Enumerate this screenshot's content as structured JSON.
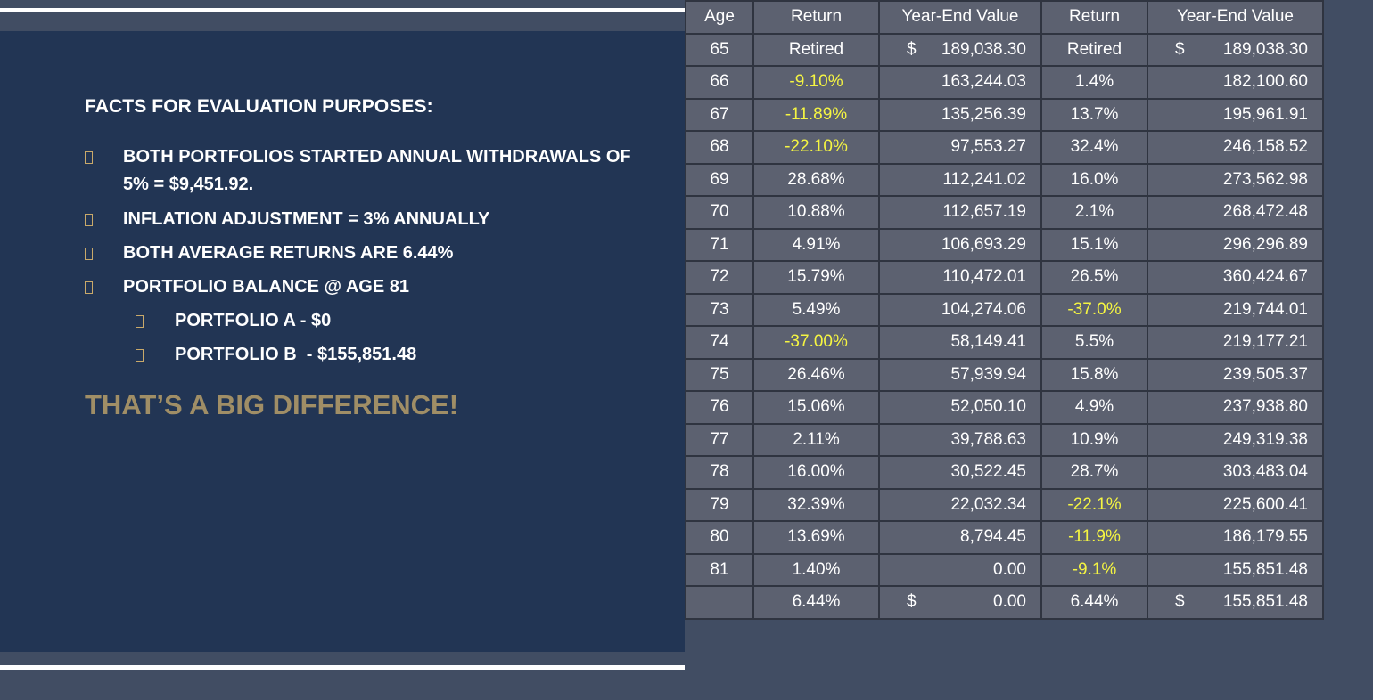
{
  "left_panel": {
    "heading": "FACTS FOR EVALUATION PURPOSES:",
    "bullets": [
      {
        "text1": "BOTH PORTFOLIOS STARTED ANNUAL WITHDRAWALS OF",
        "text2": "5% = $9,451.92."
      },
      {
        "text1": "INFLATION ADJUSTMENT = 3% ANNUALLY"
      },
      {
        "text1": "BOTH AVERAGE RETURNS ARE 6.44%"
      },
      {
        "text1": "PORTFOLIO BALANCE @ AGE 81"
      }
    ],
    "sub_bullets": [
      "PORTFOLIO A - $0",
      "PORTFOLIO B  - $155,851.48"
    ],
    "emphasis": "THAT’S A BIG DIFFERENCE!",
    "colors": {
      "panel": "#223554",
      "emphasis": "#a08e66",
      "bullet_marker": "#c9a96a"
    }
  },
  "table": {
    "headers": [
      "Age",
      "Return",
      "Year-End Value",
      "Return",
      "Year-End Value"
    ],
    "rows": [
      {
        "age": "65",
        "ret_a": "Retired",
        "cur_a": "$",
        "val_a": "189,038.30",
        "ret_b": "Retired",
        "cur_b": "$",
        "val_b": "189,038.30"
      },
      {
        "age": "66",
        "ret_a": "-9.10%",
        "val_a": "163,244.03",
        "ret_b": "1.4%",
        "val_b": "182,100.60"
      },
      {
        "age": "67",
        "ret_a": "-11.89%",
        "val_a": "135,256.39",
        "ret_b": "13.7%",
        "val_b": "195,961.91"
      },
      {
        "age": "68",
        "ret_a": "-22.10%",
        "val_a": "97,553.27",
        "ret_b": "32.4%",
        "val_b": "246,158.52"
      },
      {
        "age": "69",
        "ret_a": "28.68%",
        "val_a": "112,241.02",
        "ret_b": "16.0%",
        "val_b": "273,562.98"
      },
      {
        "age": "70",
        "ret_a": "10.88%",
        "val_a": "112,657.19",
        "ret_b": "2.1%",
        "val_b": "268,472.48"
      },
      {
        "age": "71",
        "ret_a": "4.91%",
        "val_a": "106,693.29",
        "ret_b": "15.1%",
        "val_b": "296,296.89"
      },
      {
        "age": "72",
        "ret_a": "15.79%",
        "val_a": "110,472.01",
        "ret_b": "26.5%",
        "val_b": "360,424.67"
      },
      {
        "age": "73",
        "ret_a": "5.49%",
        "val_a": "104,274.06",
        "ret_b": "-37.0%",
        "val_b": "219,744.01"
      },
      {
        "age": "74",
        "ret_a": "-37.00%",
        "val_a": "58,149.41",
        "ret_b": "5.5%",
        "val_b": "219,177.21"
      },
      {
        "age": "75",
        "ret_a": "26.46%",
        "val_a": "57,939.94",
        "ret_b": "15.8%",
        "val_b": "239,505.37"
      },
      {
        "age": "76",
        "ret_a": "15.06%",
        "val_a": "52,050.10",
        "ret_b": "4.9%",
        "val_b": "237,938.80"
      },
      {
        "age": "77",
        "ret_a": "2.11%",
        "val_a": "39,788.63",
        "ret_b": "10.9%",
        "val_b": "249,319.38"
      },
      {
        "age": "78",
        "ret_a": "16.00%",
        "val_a": "30,522.45",
        "ret_b": "28.7%",
        "val_b": "303,483.04"
      },
      {
        "age": "79",
        "ret_a": "32.39%",
        "val_a": "22,032.34",
        "ret_b": "-22.1%",
        "val_b": "225,600.41"
      },
      {
        "age": "80",
        "ret_a": "13.69%",
        "val_a": "8,794.45",
        "ret_b": "-11.9%",
        "val_b": "186,179.55"
      },
      {
        "age": "81",
        "ret_a": "1.40%",
        "val_a": "0.00",
        "ret_b": "-9.1%",
        "val_b": "155,851.48"
      },
      {
        "age": "",
        "ret_a": "6.44%",
        "cur_a": "$",
        "val_a": "0.00",
        "ret_b": "6.44%",
        "cur_b": "$",
        "val_b": "155,851.48"
      }
    ],
    "colors": {
      "cell_bg": "#5c6170",
      "border": "#2f3440",
      "negative_text": "#f5f542"
    }
  }
}
